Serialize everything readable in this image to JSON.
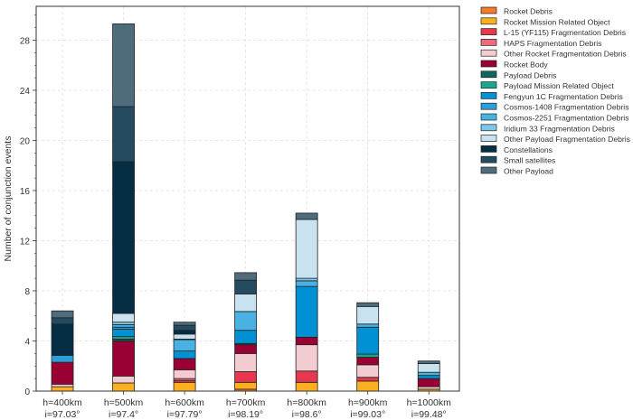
{
  "chart_data": {
    "type": "bar",
    "stacked": true,
    "title": "",
    "xlabel": "",
    "ylabel": "Number of conjunction events",
    "ylim": [
      0,
      30.7
    ],
    "yticks": [
      0,
      4,
      8,
      12,
      16,
      20,
      24,
      28
    ],
    "grid": true,
    "legend_position": "outside-right-top",
    "categories": [
      [
        "h=400km",
        "i=97.03°"
      ],
      [
        "h=500km",
        "i=97.4°"
      ],
      [
        "h=600km",
        "i=97.79°"
      ],
      [
        "h=700km",
        "i=98.19°"
      ],
      [
        "h=800km",
        "i=98.6°"
      ],
      [
        "h=900km",
        "i=99.03°"
      ],
      [
        "h=1000km",
        "i=99.48°"
      ]
    ],
    "series": [
      {
        "name": "Rocket Debris",
        "color": "#f4792b",
        "values": [
          0,
          0,
          0,
          0.15,
          0,
          0,
          0
        ]
      },
      {
        "name": "Rocket Mission Related Object",
        "color": "#fbb021",
        "values": [
          0.35,
          0.65,
          0.7,
          0.55,
          0.7,
          0.8,
          0.15
        ]
      },
      {
        "name": "L-15 (YF115) Fragmentation Debris",
        "color": "#e8384f",
        "values": [
          0,
          0,
          0.15,
          0.85,
          0.9,
          0.3,
          0
        ]
      },
      {
        "name": "HAPS Fragmentation Debris",
        "color": "#ef6a7a",
        "values": [
          0,
          0,
          0.15,
          0,
          0,
          0,
          0
        ]
      },
      {
        "name": "Other Rocket Fragmentation Debris",
        "color": "#f2ccd0",
        "values": [
          0.2,
          0.55,
          0.7,
          1.45,
          2.1,
          1.0,
          0.2
        ]
      },
      {
        "name": "Rocket Body",
        "color": "#990033",
        "values": [
          1.75,
          2.8,
          0.9,
          0.7,
          0.6,
          0.6,
          0.65
        ]
      },
      {
        "name": "Payload Debris",
        "color": "#0e6660",
        "values": [
          0,
          0.15,
          0,
          0.1,
          0,
          0,
          0
        ]
      },
      {
        "name": "Payload Mission Related Object",
        "color": "#17a88f",
        "values": [
          0,
          0.2,
          0,
          0,
          0,
          0.25,
          0
        ]
      },
      {
        "name": "Fengyun 1C Fragmentation Debris",
        "color": "#0091d5",
        "values": [
          0,
          0.6,
          0.6,
          1.05,
          4.05,
          2.15,
          0.25
        ]
      },
      {
        "name": "Cosmos-1408 Fragmentation Debris",
        "color": "#2a9fd9",
        "values": [
          0.55,
          0.15,
          0,
          0,
          0,
          0,
          0
        ]
      },
      {
        "name": "Cosmos-2251 Fragmentation Debris",
        "color": "#4ab1e3",
        "values": [
          0,
          0.2,
          0.9,
          1.5,
          0.45,
          0.25,
          0.25
        ]
      },
      {
        "name": "Iridium 33 Fragmentation Debris",
        "color": "#7cc6ea",
        "values": [
          0,
          0.2,
          0.05,
          0,
          0.2,
          0,
          0
        ]
      },
      {
        "name": "Other Payload Fragmentation Debris",
        "color": "#c8e2f0",
        "values": [
          0,
          0.7,
          0.4,
          1.4,
          4.7,
          1.4,
          0.7
        ]
      },
      {
        "name": "Constellations",
        "color": "#052e45",
        "values": [
          2.5,
          12.1,
          0.3,
          0,
          0,
          0,
          0
        ]
      },
      {
        "name": "Small satellites",
        "color": "#244b60",
        "values": [
          0.5,
          4.4,
          0.4,
          1.1,
          0,
          0,
          0
        ]
      },
      {
        "name": "Other Payload",
        "color": "#4f6c7c",
        "values": [
          0.55,
          6.6,
          0.25,
          0.6,
          0.5,
          0.3,
          0.2
        ]
      }
    ]
  }
}
